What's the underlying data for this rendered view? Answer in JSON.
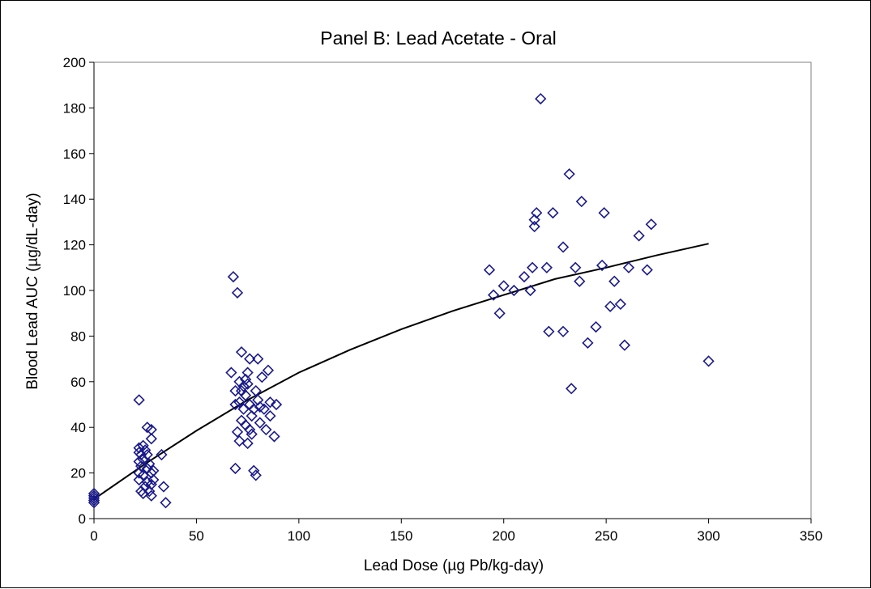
{
  "chart_data": {
    "type": "scatter",
    "title": "Panel B:  Lead Acetate - Oral",
    "xlabel": "Lead Dose (µg Pb/kg-day)",
    "ylabel": "Blood Lead AUC (µg/dL-day)",
    "xlim": [
      0,
      350
    ],
    "ylim": [
      0,
      200
    ],
    "xticks": [
      0,
      50,
      100,
      150,
      200,
      250,
      300,
      350
    ],
    "yticks": [
      0,
      20,
      40,
      60,
      80,
      100,
      120,
      140,
      160,
      180,
      200
    ],
    "grid": false,
    "legend": "none",
    "colors": {
      "marker": "#1a1a8c",
      "fit_line": "#000000"
    },
    "series": [
      {
        "marker": "diamond-open",
        "points": [
          [
            0,
            7
          ],
          [
            0,
            8
          ],
          [
            0,
            9
          ],
          [
            0,
            10
          ],
          [
            0,
            11
          ],
          [
            22,
            52
          ],
          [
            22,
            31
          ],
          [
            22,
            29
          ],
          [
            22,
            25
          ],
          [
            22,
            20
          ],
          [
            22,
            17
          ],
          [
            23,
            28
          ],
          [
            23,
            23
          ],
          [
            23,
            12
          ],
          [
            24,
            32
          ],
          [
            24,
            26
          ],
          [
            24,
            19
          ],
          [
            24,
            11
          ],
          [
            25,
            30
          ],
          [
            25,
            14
          ],
          [
            26,
            40
          ],
          [
            26,
            28
          ],
          [
            26,
            22
          ],
          [
            26,
            16
          ],
          [
            27,
            24
          ],
          [
            27,
            12
          ],
          [
            28,
            39
          ],
          [
            28,
            35
          ],
          [
            28,
            20
          ],
          [
            28,
            15
          ],
          [
            28,
            10
          ],
          [
            29,
            21
          ],
          [
            29,
            17
          ],
          [
            33,
            28
          ],
          [
            34,
            14
          ],
          [
            35,
            7
          ],
          [
            67,
            64
          ],
          [
            68,
            106
          ],
          [
            69,
            56
          ],
          [
            69,
            50
          ],
          [
            69,
            22
          ],
          [
            70,
            99
          ],
          [
            70,
            38
          ],
          [
            71,
            60
          ],
          [
            71,
            51
          ],
          [
            71,
            34
          ],
          [
            72,
            73
          ],
          [
            72,
            56
          ],
          [
            72,
            43
          ],
          [
            73,
            58
          ],
          [
            73,
            48
          ],
          [
            74,
            61
          ],
          [
            74,
            54
          ],
          [
            74,
            41
          ],
          [
            75,
            64
          ],
          [
            75,
            33
          ],
          [
            75,
            59
          ],
          [
            76,
            70
          ],
          [
            76,
            39
          ],
          [
            76,
            50
          ],
          [
            77,
            37
          ],
          [
            77,
            45
          ],
          [
            78,
            48
          ],
          [
            78,
            21
          ],
          [
            79,
            56
          ],
          [
            79,
            19
          ],
          [
            80,
            52
          ],
          [
            80,
            70
          ],
          [
            81,
            49
          ],
          [
            81,
            42
          ],
          [
            82,
            62
          ],
          [
            83,
            48
          ],
          [
            84,
            39
          ],
          [
            85,
            65
          ],
          [
            86,
            51
          ],
          [
            86,
            45
          ],
          [
            88,
            36
          ],
          [
            89,
            50
          ],
          [
            193,
            109
          ],
          [
            195,
            98
          ],
          [
            198,
            90
          ],
          [
            200,
            102
          ],
          [
            205,
            100
          ],
          [
            210,
            106
          ],
          [
            213,
            100
          ],
          [
            214,
            110
          ],
          [
            215,
            128
          ],
          [
            215,
            131
          ],
          [
            216,
            134
          ],
          [
            218,
            184
          ],
          [
            221,
            110
          ],
          [
            222,
            82
          ],
          [
            224,
            134
          ],
          [
            229,
            119
          ],
          [
            229,
            82
          ],
          [
            232,
            151
          ],
          [
            233,
            57
          ],
          [
            235,
            110
          ],
          [
            237,
            104
          ],
          [
            238,
            139
          ],
          [
            241,
            77
          ],
          [
            245,
            84
          ],
          [
            248,
            111
          ],
          [
            249,
            134
          ],
          [
            252,
            93
          ],
          [
            254,
            104
          ],
          [
            257,
            94
          ],
          [
            259,
            76
          ],
          [
            261,
            110
          ],
          [
            266,
            124
          ],
          [
            270,
            109
          ],
          [
            272,
            129
          ],
          [
            300,
            69
          ]
        ]
      }
    ],
    "fit_line": {
      "x": [
        0,
        25,
        50,
        75,
        100,
        125,
        150,
        175,
        200,
        225,
        250,
        275,
        300
      ],
      "y": [
        8.5,
        24,
        38.5,
        52,
        64,
        74,
        83,
        91,
        98,
        105,
        110,
        115.5,
        120.5
      ]
    }
  }
}
